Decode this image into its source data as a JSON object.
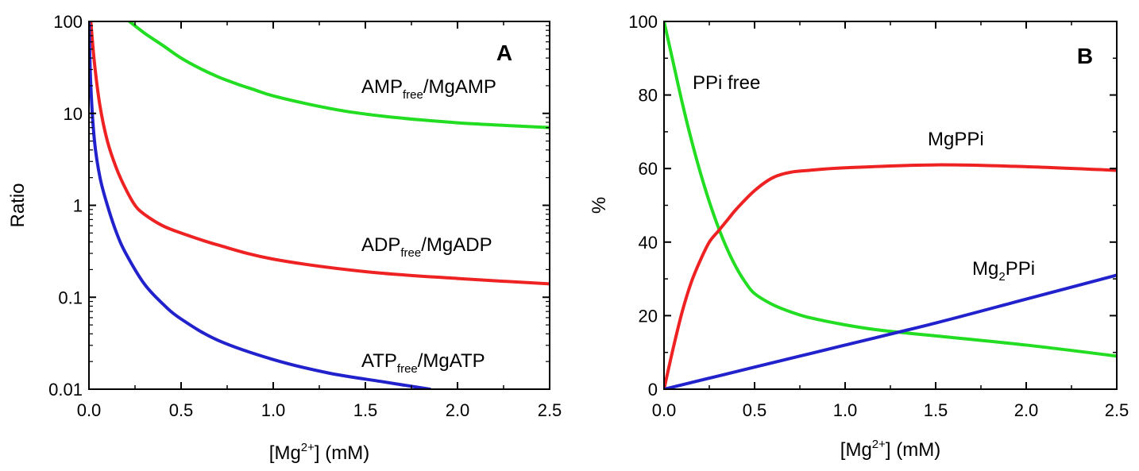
{
  "chart_data": [
    {
      "type": "line",
      "panel_label": "A",
      "xlabel": {
        "pre": "[Mg",
        "sup": "2+",
        "post": "] (mM)"
      },
      "ylabel": "Ratio",
      "yscale": "log",
      "xlim": [
        0,
        2.5
      ],
      "ylim": [
        0.01,
        100
      ],
      "x_ticks": [
        "0.0",
        "0.5",
        "1.0",
        "1.5",
        "2.0",
        "2.5"
      ],
      "y_ticks": [
        "0.01",
        "0.1",
        "1",
        "10",
        "100"
      ],
      "y_tick_values": [
        0.01,
        0.1,
        1,
        10,
        100
      ],
      "x_tick_values": [
        0,
        0.5,
        1.0,
        1.5,
        2.0,
        2.5
      ],
      "series": [
        {
          "name": "AMP_free/MgAMP",
          "label_parts": {
            "main": "AMP",
            "sub": "free",
            "rest": "/MgAMP"
          },
          "color": "#22dd22",
          "x": [
            0.22,
            0.3,
            0.4,
            0.5,
            0.6,
            0.7,
            0.8,
            0.9,
            1.0,
            1.2,
            1.4,
            1.6,
            1.8,
            2.0,
            2.2,
            2.5
          ],
          "y": [
            100,
            75,
            55,
            40,
            31,
            25,
            21,
            18,
            15.5,
            12.5,
            10.5,
            9.3,
            8.5,
            7.9,
            7.5,
            7.0
          ]
        },
        {
          "name": "ADP_free/MgADP",
          "label_parts": {
            "main": "ADP",
            "sub": "free",
            "rest": "/MgADP"
          },
          "color": "#ee2222",
          "x": [
            0.01,
            0.03,
            0.06,
            0.1,
            0.15,
            0.2,
            0.25,
            0.3,
            0.4,
            0.5,
            0.7,
            1.0,
            1.5,
            2.0,
            2.5
          ],
          "y": [
            100,
            35,
            12,
            5,
            2.5,
            1.5,
            1.0,
            0.8,
            0.6,
            0.5,
            0.37,
            0.26,
            0.19,
            0.16,
            0.14
          ]
        },
        {
          "name": "ATP_free/MgATP",
          "label_parts": {
            "main": "ATP",
            "sub": "free",
            "rest": "/MgATP"
          },
          "color": "#2222cc",
          "x": [
            0.0,
            0.01,
            0.03,
            0.06,
            0.1,
            0.15,
            0.2,
            0.3,
            0.4,
            0.5,
            0.7,
            1.0,
            1.3,
            1.6,
            1.85
          ],
          "y": [
            100,
            20,
            5,
            2,
            1,
            0.5,
            0.3,
            0.14,
            0.085,
            0.058,
            0.034,
            0.021,
            0.015,
            0.012,
            0.01
          ]
        }
      ]
    },
    {
      "type": "line",
      "panel_label": "B",
      "xlabel": {
        "pre": "[Mg",
        "sup": "2+",
        "post": "] (mM)"
      },
      "ylabel": "%",
      "yscale": "linear",
      "xlim": [
        0,
        2.5
      ],
      "ylim": [
        0,
        100
      ],
      "x_ticks": [
        "0.0",
        "0.5",
        "1.0",
        "1.5",
        "2.0",
        "2.5"
      ],
      "y_ticks": [
        "0",
        "20",
        "40",
        "60",
        "80",
        "100"
      ],
      "y_tick_values": [
        0,
        20,
        40,
        60,
        80,
        100
      ],
      "x_tick_values": [
        0,
        0.5,
        1.0,
        1.5,
        2.0,
        2.5
      ],
      "series": [
        {
          "name": "PPi free",
          "label_parts": {
            "main": "PPi free",
            "sub": "",
            "rest": ""
          },
          "color": "#22dd22",
          "x": [
            0.0,
            0.05,
            0.1,
            0.15,
            0.2,
            0.25,
            0.3,
            0.35,
            0.4,
            0.45,
            0.5,
            0.6,
            0.7,
            0.8,
            1.0,
            1.2,
            1.5,
            2.0,
            2.5
          ],
          "y": [
            100,
            89,
            78,
            68,
            59,
            51,
            44,
            38,
            33,
            29,
            26,
            23,
            21,
            19.5,
            17.5,
            16,
            14.5,
            12,
            9
          ]
        },
        {
          "name": "MgPPi",
          "label_parts": {
            "main": "MgPPi",
            "sub": "",
            "rest": ""
          },
          "color": "#ee2222",
          "x": [
            0.0,
            0.05,
            0.1,
            0.15,
            0.2,
            0.25,
            0.3,
            0.35,
            0.4,
            0.5,
            0.6,
            0.7,
            0.8,
            1.0,
            1.5,
            2.0,
            2.5
          ],
          "y": [
            0,
            11,
            21,
            29,
            35,
            40,
            43,
            46,
            49,
            54,
            57.5,
            59,
            59.5,
            60.2,
            61,
            60.5,
            59.5
          ]
        },
        {
          "name": "Mg2PPi",
          "label_parts": {
            "main": "Mg",
            "sub": "2",
            "rest": "PPi"
          },
          "color": "#2222cc",
          "x": [
            0.0,
            0.5,
            1.0,
            1.5,
            2.0,
            2.5
          ],
          "y": [
            0,
            6,
            12,
            18,
            24.5,
            31
          ]
        }
      ]
    }
  ]
}
